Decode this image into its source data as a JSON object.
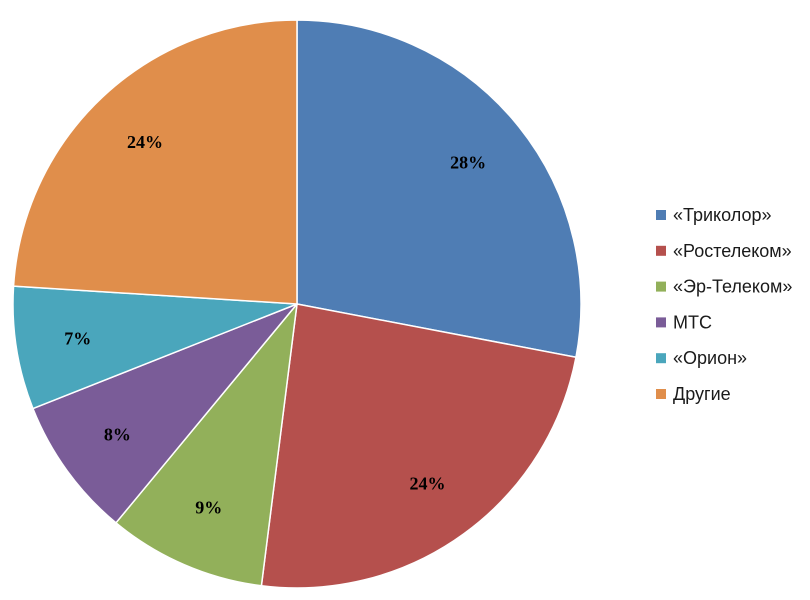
{
  "chart_data": {
    "type": "pie",
    "categories": [
      "«Триколор»",
      "«Ростелеком»",
      "«Эр-Телеком»",
      "МТС",
      "«Орион»",
      "Другие"
    ],
    "values": [
      28,
      24,
      9,
      8,
      7,
      24
    ],
    "labels": [
      "28%",
      "24%",
      "9%",
      "8%",
      "7%",
      "24%"
    ],
    "colors": [
      "#4f7db4",
      "#b5504d",
      "#92b05a",
      "#7a5c98",
      "#4aa6bc",
      "#e08e4b"
    ],
    "start_angle": "12 o'clock",
    "direction": "clockwise",
    "legend_position": "right"
  }
}
